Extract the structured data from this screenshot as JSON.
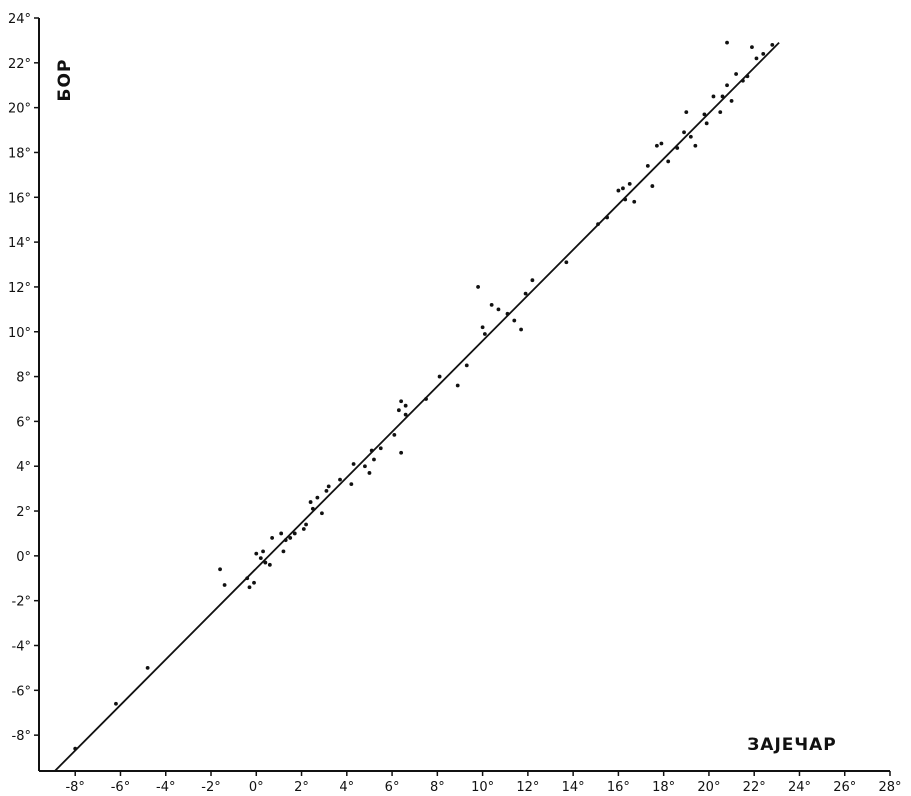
{
  "chart_data": {
    "type": "scatter",
    "title": "",
    "xlabel": "ЗАЈЕЧАР",
    "ylabel": "БОР",
    "xlim": [
      -9.6,
      28
    ],
    "ylim": [
      -9.6,
      24
    ],
    "x_ticks": [
      -8,
      -6,
      -4,
      -2,
      0,
      2,
      4,
      6,
      8,
      10,
      12,
      14,
      16,
      18,
      20,
      22,
      24,
      26,
      28
    ],
    "x_tick_labels": [
      "-8°",
      "-6°",
      "-4°",
      "-2°",
      "0°",
      "2°",
      "4°",
      "6°",
      "8°",
      "10°",
      "12°",
      "14°",
      "16°",
      "18°",
      "20°",
      "22°",
      "24°",
      "26°",
      "28°"
    ],
    "y_ticks": [
      -8,
      -6,
      -4,
      -2,
      0,
      2,
      4,
      6,
      8,
      10,
      12,
      14,
      16,
      18,
      20,
      22,
      24
    ],
    "y_tick_labels": [
      "-8°",
      "-6°",
      "-4°",
      "-2°",
      "0°",
      "2°",
      "4°",
      "6°",
      "8°",
      "10°",
      "12°",
      "14°",
      "16°",
      "18°",
      "20°",
      "22°",
      "24°"
    ],
    "grid": false,
    "fit_line": {
      "x": [
        -8.9,
        23.1
      ],
      "y": [
        -9.6,
        22.9
      ]
    },
    "points": [
      [
        -8.0,
        -8.6
      ],
      [
        -6.2,
        -6.6
      ],
      [
        -4.8,
        -5.0
      ],
      [
        -1.6,
        -0.6
      ],
      [
        -1.4,
        -1.3
      ],
      [
        -0.4,
        -1.0
      ],
      [
        -0.3,
        -1.4
      ],
      [
        -0.1,
        -1.2
      ],
      [
        0.0,
        0.1
      ],
      [
        0.2,
        -0.1
      ],
      [
        0.3,
        0.2
      ],
      [
        0.4,
        -0.3
      ],
      [
        0.6,
        -0.4
      ],
      [
        0.7,
        0.8
      ],
      [
        1.1,
        1.0
      ],
      [
        1.2,
        0.2
      ],
      [
        1.3,
        0.7
      ],
      [
        1.5,
        0.8
      ],
      [
        1.7,
        1.0
      ],
      [
        2.1,
        1.2
      ],
      [
        2.2,
        1.4
      ],
      [
        2.4,
        2.4
      ],
      [
        2.5,
        2.1
      ],
      [
        2.7,
        2.6
      ],
      [
        2.9,
        1.9
      ],
      [
        3.1,
        2.9
      ],
      [
        3.2,
        3.1
      ],
      [
        3.7,
        3.4
      ],
      [
        4.2,
        3.2
      ],
      [
        4.3,
        4.1
      ],
      [
        4.8,
        4.0
      ],
      [
        5.0,
        3.7
      ],
      [
        5.1,
        4.7
      ],
      [
        5.2,
        4.3
      ],
      [
        5.5,
        4.8
      ],
      [
        6.1,
        5.4
      ],
      [
        6.3,
        6.5
      ],
      [
        6.4,
        6.9
      ],
      [
        6.4,
        4.6
      ],
      [
        6.6,
        6.7
      ],
      [
        6.6,
        6.3
      ],
      [
        7.5,
        7.0
      ],
      [
        8.1,
        8.0
      ],
      [
        8.9,
        7.6
      ],
      [
        9.3,
        8.5
      ],
      [
        9.8,
        12.0
      ],
      [
        10.0,
        10.2
      ],
      [
        10.1,
        9.9
      ],
      [
        10.4,
        11.2
      ],
      [
        10.7,
        11.0
      ],
      [
        11.1,
        10.8
      ],
      [
        11.4,
        10.5
      ],
      [
        11.7,
        10.1
      ],
      [
        11.9,
        11.7
      ],
      [
        12.2,
        12.3
      ],
      [
        13.7,
        13.1
      ],
      [
        15.1,
        14.8
      ],
      [
        15.5,
        15.1
      ],
      [
        16.0,
        16.3
      ],
      [
        16.2,
        16.4
      ],
      [
        16.3,
        15.9
      ],
      [
        16.5,
        16.6
      ],
      [
        16.7,
        15.8
      ],
      [
        17.3,
        17.4
      ],
      [
        17.5,
        16.5
      ],
      [
        17.7,
        18.3
      ],
      [
        17.9,
        18.4
      ],
      [
        18.2,
        17.6
      ],
      [
        18.6,
        18.2
      ],
      [
        18.9,
        18.9
      ],
      [
        19.0,
        19.8
      ],
      [
        19.2,
        18.7
      ],
      [
        19.4,
        18.3
      ],
      [
        19.8,
        19.7
      ],
      [
        19.9,
        19.3
      ],
      [
        20.2,
        20.5
      ],
      [
        20.5,
        19.8
      ],
      [
        20.6,
        20.5
      ],
      [
        20.8,
        21.0
      ],
      [
        20.8,
        22.9
      ],
      [
        21.0,
        20.3
      ],
      [
        21.2,
        21.5
      ],
      [
        21.5,
        21.2
      ],
      [
        21.7,
        21.4
      ],
      [
        21.9,
        22.7
      ],
      [
        22.1,
        22.2
      ],
      [
        22.4,
        22.4
      ],
      [
        22.8,
        22.8
      ]
    ]
  }
}
